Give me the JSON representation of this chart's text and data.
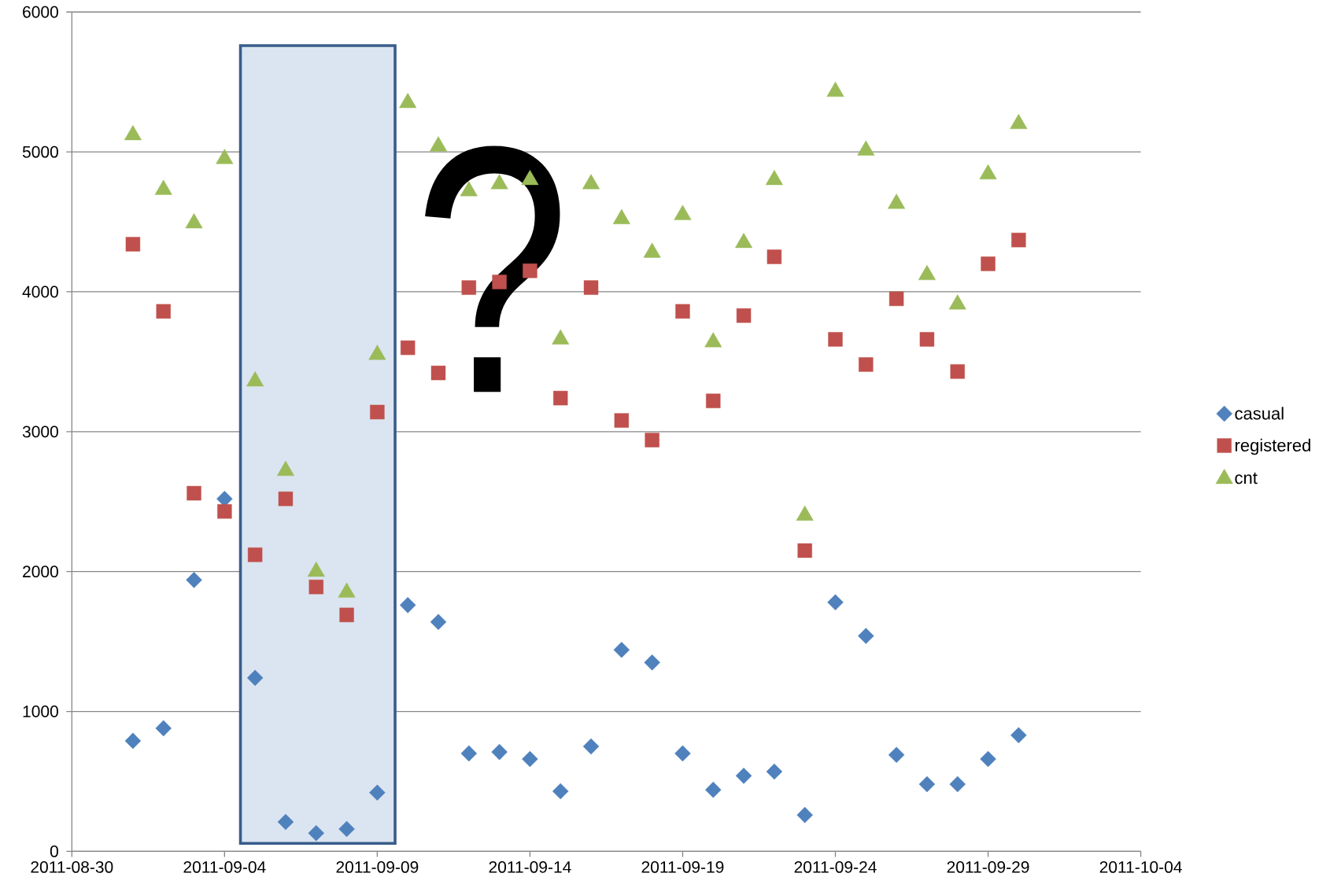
{
  "chart_data": {
    "type": "scatter",
    "x": [
      "2011-09-01",
      "2011-09-02",
      "2011-09-03",
      "2011-09-04",
      "2011-09-05",
      "2011-09-06",
      "2011-09-07",
      "2011-09-08",
      "2011-09-09",
      "2011-09-10",
      "2011-09-11",
      "2011-09-12",
      "2011-09-13",
      "2011-09-14",
      "2011-09-15",
      "2011-09-16",
      "2011-09-17",
      "2011-09-18",
      "2011-09-19",
      "2011-09-20",
      "2011-09-21",
      "2011-09-22",
      "2011-09-23",
      "2011-09-24",
      "2011-09-25",
      "2011-09-26",
      "2011-09-27",
      "2011-09-28",
      "2011-09-29",
      "2011-09-30"
    ],
    "series": [
      {
        "name": "casual",
        "color": "#4f81bd",
        "marker": "diamond",
        "values": [
          790,
          880,
          1940,
          2520,
          1240,
          210,
          130,
          160,
          420,
          1760,
          1640,
          700,
          710,
          660,
          430,
          750,
          1440,
          1350,
          700,
          440,
          540,
          570,
          260,
          1780,
          1540,
          690,
          480,
          480,
          660,
          830
        ]
      },
      {
        "name": "registered",
        "color": "#c0504d",
        "marker": "square",
        "values": [
          4340,
          3860,
          2560,
          2430,
          2120,
          2520,
          1890,
          1690,
          3140,
          3600,
          3420,
          4030,
          4070,
          4150,
          3240,
          4030,
          3080,
          2940,
          3860,
          3220,
          3830,
          4250,
          2150,
          3660,
          3480,
          3950,
          3660,
          3430,
          4200,
          4370
        ]
      },
      {
        "name": "cnt",
        "color": "#9bbb59",
        "marker": "triangle",
        "values": [
          5120,
          4730,
          4490,
          4950,
          3360,
          2720,
          2000,
          1850,
          3550,
          5350,
          5040,
          4720,
          4770,
          4800,
          3660,
          4770,
          4520,
          4280,
          4550,
          3640,
          4350,
          4800,
          2400,
          5430,
          5010,
          4630,
          4120,
          3910,
          4840,
          5200
        ]
      }
    ],
    "xlim": [
      "2011-08-30",
      "2011-10-04"
    ],
    "xticks": [
      "2011-08-30",
      "2011-09-04",
      "2011-09-09",
      "2011-09-14",
      "2011-09-19",
      "2011-09-24",
      "2011-09-29",
      "2011-10-04"
    ],
    "ylim": [
      0,
      6000
    ],
    "yticks": [
      0,
      1000,
      2000,
      3000,
      4000,
      5000,
      6000
    ],
    "grid": "y",
    "legend": "right",
    "bands": [
      {
        "axis": "x",
        "from": "2011-09-04T12:30",
        "to": "2011-09-09T14:00",
        "color": "#dbe5f1"
      }
    ],
    "annotations": [
      "?"
    ]
  }
}
